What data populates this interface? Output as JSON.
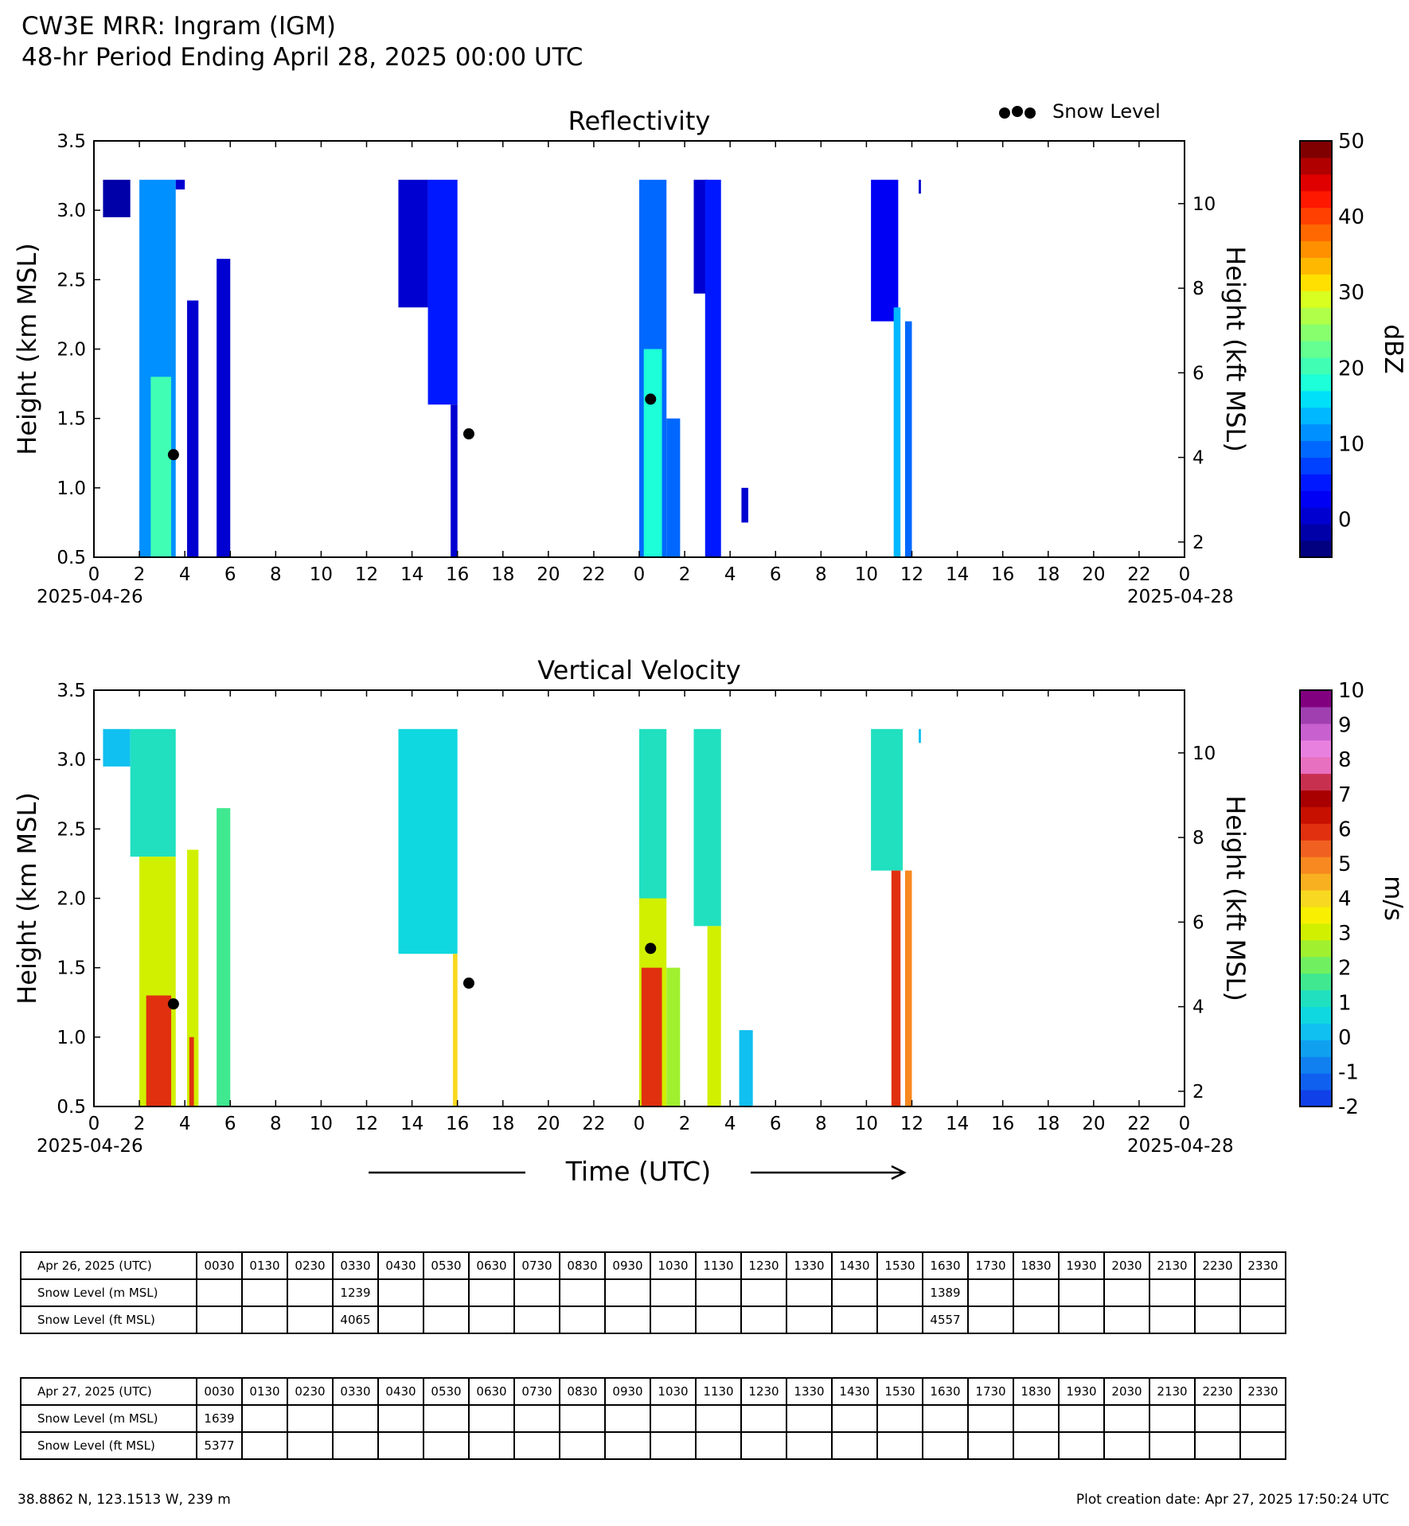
{
  "header": {
    "title": "CW3E MRR: Ingram (IGM)",
    "subtitle": "48-hr Period Ending April 28, 2025 00:00 UTC"
  },
  "legend": {
    "label": "Snow Level",
    "placement": "top-right"
  },
  "colors": {
    "snow_level_marker": "#000000",
    "reflectivity_colormap": [
      "#000080",
      "#0000a8",
      "#0000d0",
      "#0000f5",
      "#0018ff",
      "#0040ff",
      "#0068ff",
      "#0090ff",
      "#00b8ff",
      "#00e0f8",
      "#1cffd8",
      "#40ffb4",
      "#64ff90",
      "#88ff6c",
      "#b0ff48",
      "#d8ff20",
      "#ffe000",
      "#ffb800",
      "#ff9000",
      "#ff6800",
      "#ff4000",
      "#ff1800",
      "#e00000",
      "#b00000",
      "#800000"
    ],
    "velocity_colormap": [
      "#1040e8",
      "#1060f0",
      "#1080f0",
      "#10a0f0",
      "#10c0f0",
      "#10d8e0",
      "#20e0c0",
      "#40e890",
      "#70f060",
      "#a0f030",
      "#d0f000",
      "#f8f000",
      "#f8d820",
      "#f8b020",
      "#f88820",
      "#f06020",
      "#e03010",
      "#c81000",
      "#a80000",
      "#c83050",
      "#e870c0",
      "#e880e0",
      "#c860d0",
      "#a040b0",
      "#800080"
    ]
  },
  "chart_data": [
    {
      "type": "heatmap",
      "title": "Reflectivity",
      "xlabel": "",
      "ylabel": "Height (km MSL)",
      "y2label": "Height (kft MSL)",
      "ylim": [
        0.5,
        3.5
      ],
      "y_ticks": [
        "0.5",
        "1.0",
        "1.5",
        "2.0",
        "2.5",
        "3.0",
        "3.5"
      ],
      "y2_ticks": [
        "2",
        "4",
        "6",
        "8",
        "10"
      ],
      "xlim": [
        0,
        48
      ],
      "x_tick_labels": [
        "0",
        "2",
        "4",
        "6",
        "8",
        "10",
        "12",
        "14",
        "16",
        "18",
        "20",
        "22",
        "0",
        "2",
        "4",
        "6",
        "8",
        "10",
        "12",
        "14",
        "16",
        "18",
        "20",
        "22",
        "0"
      ],
      "x_date_start": "2025-04-26",
      "x_date_end": "2025-04-28",
      "colorbar": {
        "label": "dBZ",
        "range": [
          -5,
          50
        ],
        "ticks": [
          "0",
          "10",
          "20",
          "30",
          "40",
          "50"
        ]
      },
      "echo_regions": [
        {
          "x0": 0.4,
          "x1": 1.6,
          "top": 3.22,
          "bottom": 2.95,
          "value": -2
        },
        {
          "x0": 2.0,
          "x1": 3.6,
          "top": 3.22,
          "bottom": 0.5,
          "value": 12
        },
        {
          "x0": 2.5,
          "x1": 3.4,
          "top": 1.8,
          "bottom": 0.5,
          "value": 20
        },
        {
          "x0": 3.6,
          "x1": 4.0,
          "top": 3.22,
          "bottom": 3.15,
          "value": 0
        },
        {
          "x0": 4.1,
          "x1": 4.6,
          "top": 2.35,
          "bottom": 0.5,
          "value": 0
        },
        {
          "x0": 5.4,
          "x1": 6.0,
          "top": 2.65,
          "bottom": 0.5,
          "value": 1
        },
        {
          "x0": 13.4,
          "x1": 14.7,
          "top": 3.22,
          "bottom": 2.3,
          "value": 0
        },
        {
          "x0": 14.7,
          "x1": 16.0,
          "top": 3.22,
          "bottom": 1.6,
          "value": 5
        },
        {
          "x0": 15.7,
          "x1": 16.0,
          "top": 1.6,
          "bottom": 0.5,
          "value": 1
        },
        {
          "x0": 24.0,
          "x1": 25.2,
          "top": 3.22,
          "bottom": 0.5,
          "value": 10
        },
        {
          "x0": 24.2,
          "x1": 25.0,
          "top": 2.0,
          "bottom": 0.5,
          "value": 17
        },
        {
          "x0": 25.2,
          "x1": 25.8,
          "top": 1.5,
          "bottom": 0.5,
          "value": 10
        },
        {
          "x0": 26.4,
          "x1": 27.0,
          "top": 3.22,
          "bottom": 2.4,
          "value": 0
        },
        {
          "x0": 26.9,
          "x1": 27.6,
          "top": 3.22,
          "bottom": 0.5,
          "value": 4
        },
        {
          "x0": 28.5,
          "x1": 28.8,
          "top": 1.0,
          "bottom": 0.75,
          "value": 0
        },
        {
          "x0": 34.2,
          "x1": 35.4,
          "top": 3.22,
          "bottom": 2.2,
          "value": 3
        },
        {
          "x0": 35.2,
          "x1": 35.5,
          "top": 2.3,
          "bottom": 0.5,
          "value": 14
        },
        {
          "x0": 35.7,
          "x1": 36.0,
          "top": 2.2,
          "bottom": 0.5,
          "value": 10
        },
        {
          "x0": 36.3,
          "x1": 36.4,
          "top": 3.22,
          "bottom": 3.12,
          "value": 0
        }
      ],
      "snow_level_points": [
        {
          "x": 3.5,
          "y": 1.239
        },
        {
          "x": 16.5,
          "y": 1.389
        },
        {
          "x": 24.5,
          "y": 1.639
        }
      ]
    },
    {
      "type": "heatmap",
      "title": "Vertical Velocity",
      "xlabel": "Time (UTC)",
      "ylabel": "Height (km MSL)",
      "y2label": "Height (kft MSL)",
      "ylim": [
        0.5,
        3.5
      ],
      "y_ticks": [
        "0.5",
        "1.0",
        "1.5",
        "2.0",
        "2.5",
        "3.0",
        "3.5"
      ],
      "y2_ticks": [
        "2",
        "4",
        "6",
        "8",
        "10"
      ],
      "xlim": [
        0,
        48
      ],
      "x_tick_labels": [
        "0",
        "2",
        "4",
        "6",
        "8",
        "10",
        "12",
        "14",
        "16",
        "18",
        "20",
        "22",
        "0",
        "2",
        "4",
        "6",
        "8",
        "10",
        "12",
        "14",
        "16",
        "18",
        "20",
        "22",
        "0"
      ],
      "x_date_start": "2025-04-26",
      "x_date_end": "2025-04-28",
      "colorbar": {
        "label": "m/s",
        "range": [
          -2,
          10
        ],
        "ticks": [
          "-2",
          "-1",
          "0",
          "1",
          "2",
          "3",
          "4",
          "5",
          "6",
          "7",
          "8",
          "9",
          "10"
        ]
      },
      "echo_regions": [
        {
          "x0": 0.4,
          "x1": 1.6,
          "top": 3.22,
          "bottom": 2.95,
          "value": 0.3
        },
        {
          "x0": 1.6,
          "x1": 3.6,
          "top": 3.22,
          "bottom": 2.3,
          "value": 1.0
        },
        {
          "x0": 2.0,
          "x1": 3.6,
          "top": 2.3,
          "bottom": 0.5,
          "value": 2.8
        },
        {
          "x0": 2.3,
          "x1": 3.4,
          "top": 1.3,
          "bottom": 0.5,
          "value": 6.0
        },
        {
          "x0": 4.1,
          "x1": 4.6,
          "top": 2.35,
          "bottom": 0.5,
          "value": 2.8
        },
        {
          "x0": 4.2,
          "x1": 4.4,
          "top": 1.0,
          "bottom": 0.5,
          "value": 6.0
        },
        {
          "x0": 5.4,
          "x1": 6.0,
          "top": 2.65,
          "bottom": 0.5,
          "value": 1.5
        },
        {
          "x0": 13.4,
          "x1": 16.0,
          "top": 3.22,
          "bottom": 1.6,
          "value": 0.5
        },
        {
          "x0": 15.8,
          "x1": 16.0,
          "top": 1.6,
          "bottom": 0.5,
          "value": 4.0
        },
        {
          "x0": 24.0,
          "x1": 25.2,
          "top": 3.22,
          "bottom": 2.0,
          "value": 1.2
        },
        {
          "x0": 24.0,
          "x1": 25.2,
          "top": 2.0,
          "bottom": 0.5,
          "value": 3.0
        },
        {
          "x0": 24.1,
          "x1": 25.0,
          "top": 1.5,
          "bottom": 0.5,
          "value": 5.8
        },
        {
          "x0": 25.2,
          "x1": 25.8,
          "top": 1.5,
          "bottom": 0.5,
          "value": 2.5
        },
        {
          "x0": 26.4,
          "x1": 27.6,
          "top": 3.22,
          "bottom": 1.8,
          "value": 1.2
        },
        {
          "x0": 27.0,
          "x1": 27.6,
          "top": 1.8,
          "bottom": 0.5,
          "value": 2.8
        },
        {
          "x0": 28.4,
          "x1": 29.0,
          "top": 1.05,
          "bottom": 0.5,
          "value": 0.2
        },
        {
          "x0": 34.2,
          "x1": 35.6,
          "top": 3.22,
          "bottom": 2.2,
          "value": 1.0
        },
        {
          "x0": 35.1,
          "x1": 35.5,
          "top": 2.2,
          "bottom": 0.5,
          "value": 6.0
        },
        {
          "x0": 35.7,
          "x1": 36.0,
          "top": 2.2,
          "bottom": 0.5,
          "value": 5.0
        },
        {
          "x0": 36.3,
          "x1": 36.4,
          "top": 3.22,
          "bottom": 3.12,
          "value": 0.3
        }
      ],
      "snow_level_points": [
        {
          "x": 3.5,
          "y": 1.239
        },
        {
          "x": 16.5,
          "y": 1.389
        },
        {
          "x": 24.5,
          "y": 1.639
        }
      ]
    }
  ],
  "tables": [
    {
      "date_label": "Apr 26, 2025 (UTC)",
      "times": [
        "0030",
        "0130",
        "0230",
        "0330",
        "0430",
        "0530",
        "0630",
        "0730",
        "0830",
        "0930",
        "1030",
        "1130",
        "1230",
        "1330",
        "1430",
        "1530",
        "1630",
        "1730",
        "1830",
        "1930",
        "2030",
        "2130",
        "2230",
        "2330"
      ],
      "rows": [
        {
          "label": "Snow Level (m MSL)",
          "values": [
            "",
            "",
            "",
            "1239",
            "",
            "",
            "",
            "",
            "",
            "",
            "",
            "",
            "",
            "",
            "",
            "",
            "1389",
            "",
            "",
            "",
            "",
            "",
            "",
            ""
          ]
        },
        {
          "label": "Snow Level (ft MSL)",
          "values": [
            "",
            "",
            "",
            "4065",
            "",
            "",
            "",
            "",
            "",
            "",
            "",
            "",
            "",
            "",
            "",
            "",
            "4557",
            "",
            "",
            "",
            "",
            "",
            "",
            ""
          ]
        }
      ]
    },
    {
      "date_label": "Apr 27, 2025 (UTC)",
      "times": [
        "0030",
        "0130",
        "0230",
        "0330",
        "0430",
        "0530",
        "0630",
        "0730",
        "0830",
        "0930",
        "1030",
        "1130",
        "1230",
        "1330",
        "1430",
        "1530",
        "1630",
        "1730",
        "1830",
        "1930",
        "2030",
        "2130",
        "2230",
        "2330"
      ],
      "rows": [
        {
          "label": "Snow Level (m MSL)",
          "values": [
            "1639",
            "",
            "",
            "",
            "",
            "",
            "",
            "",
            "",
            "",
            "",
            "",
            "",
            "",
            "",
            "",
            "",
            "",
            "",
            "",
            "",
            "",
            "",
            ""
          ]
        },
        {
          "label": "Snow Level (ft MSL)",
          "values": [
            "5377",
            "",
            "",
            "",
            "",
            "",
            "",
            "",
            "",
            "",
            "",
            "",
            "",
            "",
            "",
            "",
            "",
            "",
            "",
            "",
            "",
            "",
            "",
            ""
          ]
        }
      ]
    }
  ],
  "footer": {
    "location": "38.8862 N, 123.1513 W, 239 m",
    "creation_date": "Plot creation date: Apr 27, 2025 17:50:24 UTC"
  }
}
